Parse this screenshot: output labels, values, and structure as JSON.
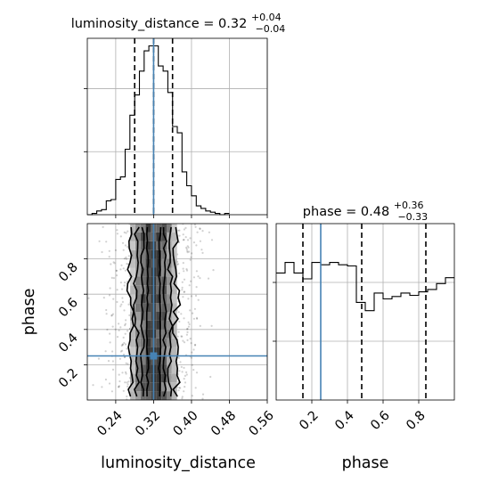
{
  "chart_data": {
    "type": "corner",
    "parameters": [
      "luminosity_distance",
      "phase"
    ],
    "truth": {
      "luminosity_distance": 0.32,
      "phase": 0.25
    },
    "marginals": [
      {
        "parameter": "luminosity_distance",
        "title_prefix": "luminosity_distance = 0.32",
        "title_sup": "+0.04",
        "title_sub": "−0.04",
        "median": 0.32,
        "quantiles": [
          0.28,
          0.32,
          0.36
        ],
        "xlim": [
          0.18,
          0.56
        ],
        "bin_edges": [
          0.18,
          0.19,
          0.2,
          0.21,
          0.22,
          0.23,
          0.24,
          0.25,
          0.26,
          0.27,
          0.28,
          0.29,
          0.3,
          0.31,
          0.32,
          0.33,
          0.34,
          0.35,
          0.36,
          0.37,
          0.38,
          0.39,
          0.4,
          0.41,
          0.42,
          0.43,
          0.44,
          0.45,
          0.46,
          0.47,
          0.48
        ],
        "counts": [
          0,
          1,
          3,
          4,
          11,
          12,
          28,
          30,
          52,
          79,
          95,
          114,
          130,
          134,
          134,
          118,
          114,
          97,
          70,
          65,
          34,
          23,
          15,
          7,
          5,
          3,
          2,
          1,
          0,
          1
        ],
        "ylim": [
          0,
          140
        ]
      },
      {
        "parameter": "phase",
        "title_prefix": "phase = 0.48",
        "title_sup": "+0.36",
        "title_sub": "−0.33",
        "median": 0.48,
        "quantiles": [
          0.15,
          0.48,
          0.84
        ],
        "xlim": [
          0.0,
          1.0
        ],
        "bin_edges": [
          0.0,
          0.05,
          0.1,
          0.15,
          0.2,
          0.25,
          0.3,
          0.35,
          0.4,
          0.45,
          0.5,
          0.55,
          0.6,
          0.65,
          0.7,
          0.75,
          0.8,
          0.85,
          0.9,
          0.95,
          1.0
        ],
        "counts": [
          108,
          117,
          108,
          103,
          117,
          115,
          117,
          115,
          114,
          83,
          76,
          91,
          86,
          88,
          91,
          89,
          92,
          94,
          99,
          104
        ],
        "ylim": [
          0,
          150
        ]
      }
    ],
    "joint": {
      "x_parameter": "luminosity_distance",
      "y_parameter": "phase",
      "xlim": [
        0.18,
        0.56
      ],
      "ylim": [
        0.0,
        1.0
      ],
      "truth_point": [
        0.32,
        0.25
      ]
    },
    "axes": {
      "x_ticks_lum": [
        "0.24",
        "0.32",
        "0.40",
        "0.48",
        "0.56"
      ],
      "x_ticks_lum_values": [
        0.24,
        0.32,
        0.4,
        0.48,
        0.56
      ],
      "y_ticks_phase": [
        "0.2",
        "0.4",
        "0.6",
        "0.8"
      ],
      "y_ticks_phase_values": [
        0.2,
        0.4,
        0.6,
        0.8
      ],
      "x_ticks_phase": [
        "0.2",
        "0.4",
        "0.6",
        "0.8"
      ],
      "x_ticks_phase_values": [
        0.2,
        0.4,
        0.6,
        0.8
      ],
      "xlabel_left": "luminosity_distance",
      "xlabel_right": "phase",
      "ylabel_joint": "phase"
    },
    "grid": true,
    "colors": {
      "truth": "#4682b4",
      "hist": "#000000",
      "points": "#000000"
    }
  }
}
